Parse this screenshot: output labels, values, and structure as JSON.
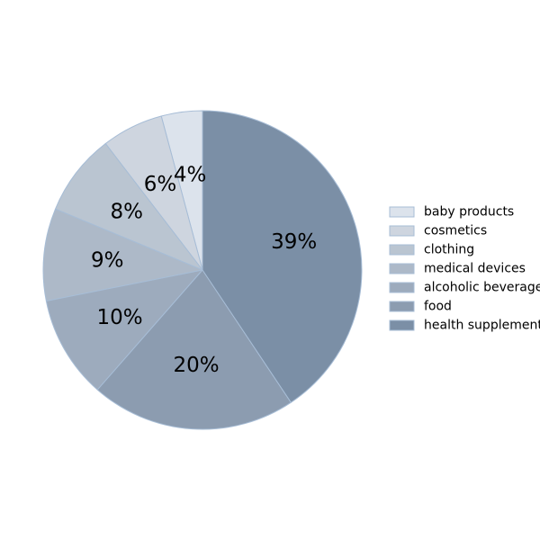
{
  "chart_data": {
    "type": "pie",
    "categories": [
      "baby products",
      "cosmetics",
      "clothing",
      "medical devices",
      "alcoholic beverages",
      "food",
      "health supplements"
    ],
    "values": [
      4,
      6,
      8,
      9,
      10,
      20,
      39
    ],
    "value_labels": [
      "4%",
      "6%",
      "8%",
      "9%",
      "10%",
      "20%",
      "39%"
    ],
    "colors": [
      "#dce3ec",
      "#ced5df",
      "#bac5d1",
      "#adb9c8",
      "#9dabbd",
      "#8c9cb0",
      "#7b8fa6"
    ],
    "edge_color": "#a7bdd6",
    "start_angle_deg": 90,
    "direction": "counterclockwise",
    "legend_position": "right",
    "legend_labels": [
      "baby products",
      "cosmetics",
      "clothing",
      "medical devices",
      "alcoholic beverage",
      "food",
      "health supplement"
    ],
    "legend_edge_color": "#a7bdd6"
  }
}
